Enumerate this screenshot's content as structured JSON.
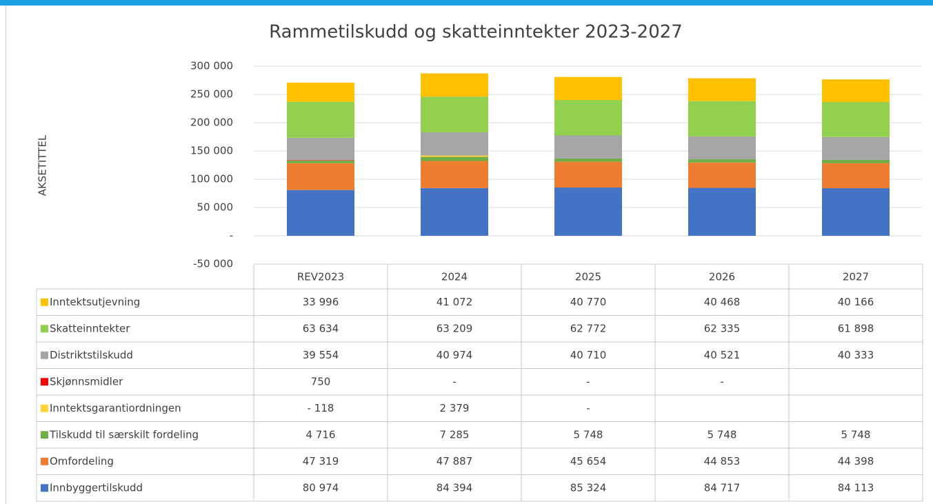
{
  "chart_data": {
    "type": "stacked_bar",
    "title": "Rammetilskudd og skatteinntekter 2023-2027",
    "y_label": "AKSETITTEL",
    "categories": [
      "REV2023",
      "2024",
      "2025",
      "2026",
      "2027"
    ],
    "ylim": [
      -50000,
      300000
    ],
    "yticks": [
      {
        "value": -50000,
        "label": "-50 000"
      },
      {
        "value": 0,
        "label": "-"
      },
      {
        "value": 50000,
        "label": "50 000"
      },
      {
        "value": 100000,
        "label": "100 000"
      },
      {
        "value": 150000,
        "label": "150 000"
      },
      {
        "value": 200000,
        "label": "200 000"
      },
      {
        "value": 250000,
        "label": "250 000"
      },
      {
        "value": 300000,
        "label": "300 000"
      }
    ],
    "grid": true,
    "series": [
      {
        "name": "Innbyggertilskudd",
        "color": "#4472c4",
        "values": [
          80974,
          84394,
          85324,
          84717,
          84113
        ],
        "value_labels": [
          "80 974",
          "84 394",
          "85 324",
          "84 717",
          "84 113"
        ]
      },
      {
        "name": "Omfordeling",
        "color": "#ed7d31",
        "values": [
          47319,
          47887,
          45654,
          44853,
          44398
        ],
        "value_labels": [
          "47 319",
          "47 887",
          "45 654",
          "44 853",
          "44 398"
        ]
      },
      {
        "name": "Tilskudd til særskilt fordeling",
        "color": "#70ad47",
        "values": [
          4716,
          7285,
          5748,
          5748,
          5748
        ],
        "value_labels": [
          "4 716",
          "7 285",
          "5 748",
          "5 748",
          "5 748"
        ]
      },
      {
        "name": "Inntektsgarantiordningen",
        "color": "#ffd43b",
        "values": [
          -118,
          2379,
          0,
          null,
          null
        ],
        "value_labels": [
          "- 118",
          "2 379",
          "-",
          null,
          null
        ]
      },
      {
        "name": "Skjønnsmidler",
        "color": "#ff0000",
        "values": [
          750,
          0,
          0,
          0,
          null
        ],
        "value_labels": [
          "750",
          "-",
          "-",
          "-",
          null
        ]
      },
      {
        "name": "Distriktstilskudd",
        "color": "#a5a5a5",
        "values": [
          39554,
          40974,
          40710,
          40521,
          40333
        ],
        "value_labels": [
          "39 554",
          "40 974",
          "40 710",
          "40 521",
          "40 333"
        ]
      },
      {
        "name": "Skatteinntekter",
        "color": "#92d050",
        "values": [
          63634,
          63209,
          62772,
          62335,
          61898
        ],
        "value_labels": [
          "63 634",
          "63 209",
          "62 772",
          "62 335",
          "61 898"
        ]
      },
      {
        "name": "Inntektsutjevning",
        "color": "#ffc000",
        "values": [
          33996,
          41072,
          40770,
          40468,
          40166
        ],
        "value_labels": [
          "33 996",
          "41 072",
          "40 770",
          "40 468",
          "40 166"
        ]
      }
    ]
  }
}
